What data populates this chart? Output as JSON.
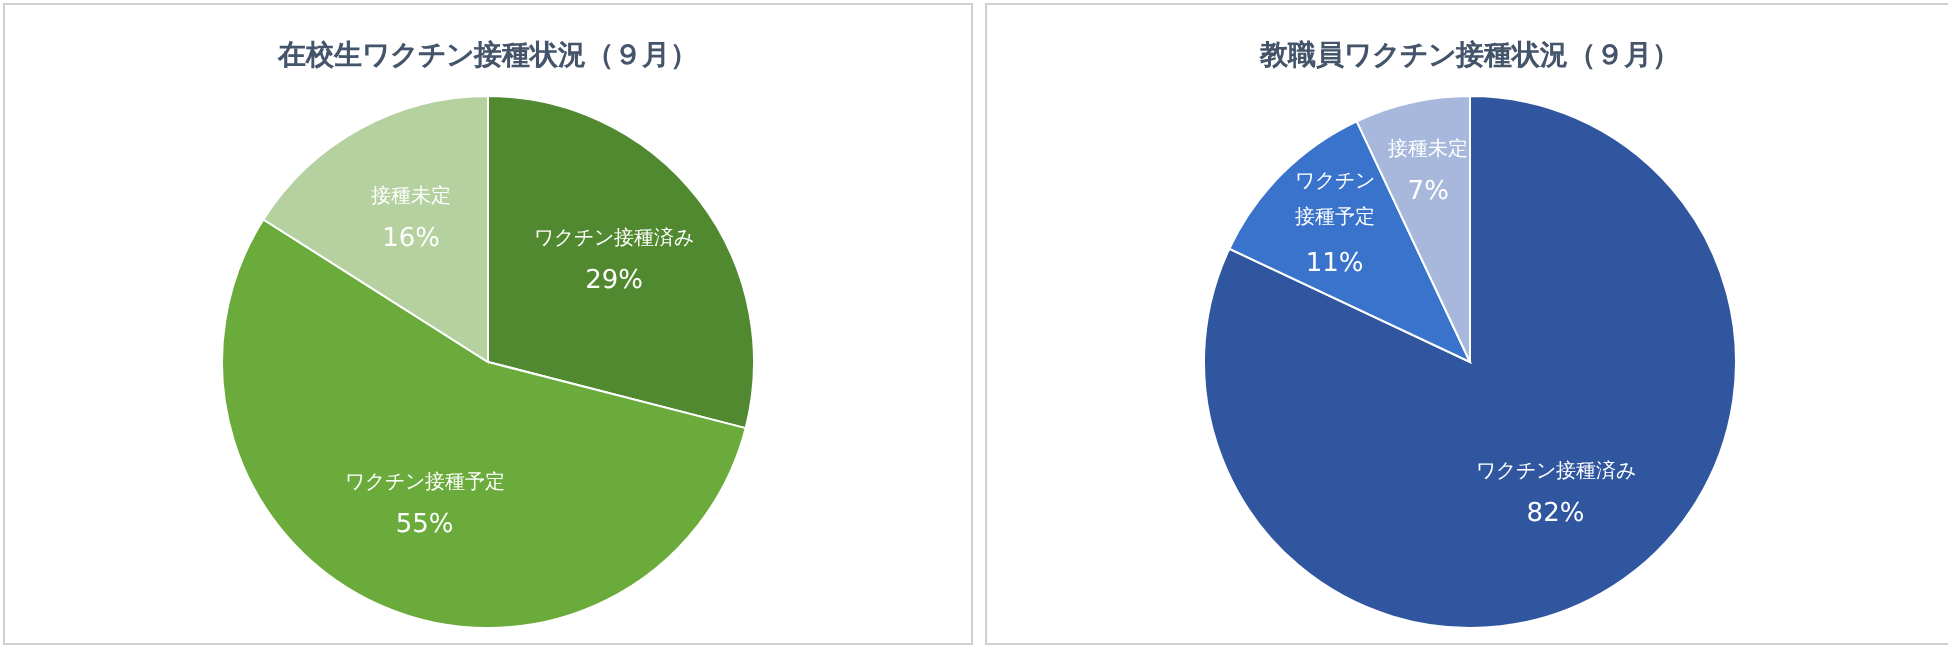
{
  "chart_data": [
    {
      "type": "pie",
      "title": "在校生ワクチン接種状況（９月）",
      "categories": [
        "ワクチン接種済み",
        "ワクチン接種予定",
        "接種未定"
      ],
      "values": [
        29,
        55,
        16
      ],
      "value_labels": [
        "29%",
        "55%",
        "16%"
      ],
      "colors": [
        "#50892f",
        "#6aab3c",
        "#b4d19f"
      ]
    },
    {
      "type": "pie",
      "title": "教職員ワクチン接種状況（９月）",
      "categories": [
        "ワクチン接種済み",
        "ワクチン接種予定",
        "接種未定"
      ],
      "values": [
        82,
        11,
        7
      ],
      "value_labels": [
        "82%",
        "11%",
        "7%"
      ],
      "colors": [
        "#2f569f",
        "#3a73cc",
        "#a8b8dc"
      ]
    }
  ]
}
